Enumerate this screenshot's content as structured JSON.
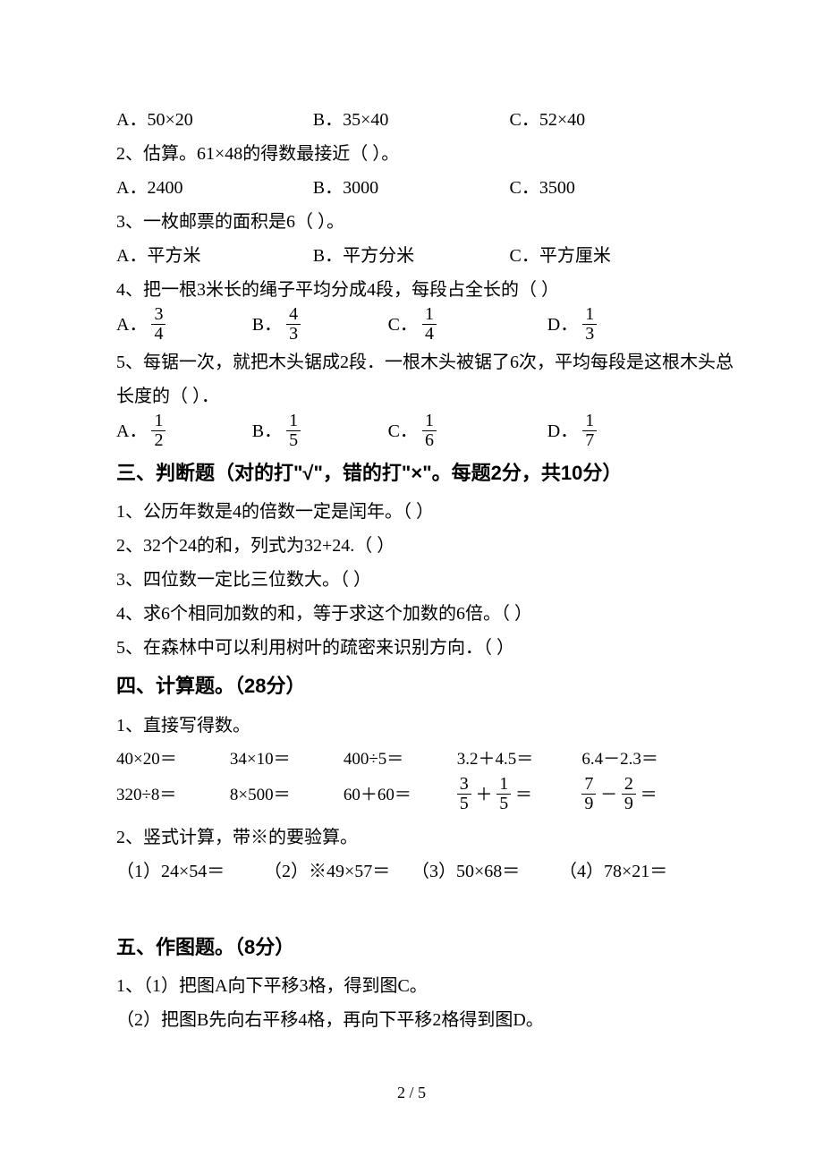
{
  "q1_top": {
    "opts": [
      "A．50×20",
      "B．35×40",
      "C．52×40"
    ]
  },
  "q2": {
    "stem": "2、估算。61×48的得数最接近（     ）。",
    "opts": [
      "A．2400",
      "B．3000",
      "C．3500"
    ]
  },
  "q3": {
    "stem": "3、一枚邮票的面积是6（     ）。",
    "opts": [
      "A．平方米",
      "B．平方分米",
      "C．平方厘米"
    ]
  },
  "q4": {
    "stem": "4、把一根3米长的绳子平均分成4段，每段占全长的（    ）",
    "opts": [
      {
        "label": "A．",
        "num": "3",
        "den": "4"
      },
      {
        "label": "B．",
        "num": "4",
        "den": "3"
      },
      {
        "label": "C．",
        "num": "1",
        "den": "4"
      },
      {
        "label": "D．",
        "num": "1",
        "den": "3"
      }
    ]
  },
  "q5": {
    "stem1": "5、每锯一次，就把木头锯成2段．一根木头被锯了6次，平均每段是这根木头总",
    "stem2": "长度的（     ）．",
    "opts": [
      {
        "label": "A．",
        "num": "1",
        "den": "2"
      },
      {
        "label": "B．",
        "num": "1",
        "den": "5"
      },
      {
        "label": "C．",
        "num": "1",
        "den": "6"
      },
      {
        "label": "D．",
        "num": "1",
        "den": "7"
      }
    ]
  },
  "sec3": {
    "head": "三、判断题（对的打\"√\"，错的打\"×\"。每题2分，共10分）",
    "items": [
      "1、公历年数是4的倍数一定是闰年。（     ）",
      "2、32个24的和，列式为32+24.（     ）",
      "3、四位数一定比三位数大。（     ）",
      "4、求6个相同加数的和，等于求这个加数的6倍。（     ）",
      "5、在森林中可以利用树叶的疏密来识别方向．（     ）"
    ]
  },
  "sec4": {
    "head": "四、计算题。（28分）",
    "sub1": "1、直接写得数。",
    "row1": [
      "40×20＝",
      "34×10＝",
      "400÷5＝",
      "3.2＋4.5＝",
      "6.4－2.3＝"
    ],
    "row2": [
      {
        "text": "320÷8＝"
      },
      {
        "text": "8×500＝"
      },
      {
        "text": "60＋60＝"
      },
      {
        "frac_expr": {
          "a_num": "3",
          "a_den": "5",
          "op": "＋",
          "b_num": "1",
          "b_den": "5"
        }
      },
      {
        "frac_expr": {
          "a_num": "7",
          "a_den": "9",
          "op": "－",
          "b_num": "2",
          "b_den": "9"
        }
      }
    ],
    "sub2": "2、竖式计算，带※的要验算。",
    "vert": [
      "（1）24×54＝",
      "（2）※49×57＝",
      "（3）50×68＝",
      "（4）78×21＝"
    ]
  },
  "sec5": {
    "head": "五、作图题。（8分）",
    "items": [
      "1、（1）把图A向下平移3格，得到图C。",
      "（2）把图B先向右平移4格，再向下平移2格得到图D。"
    ]
  },
  "page_num": "2 / 5"
}
